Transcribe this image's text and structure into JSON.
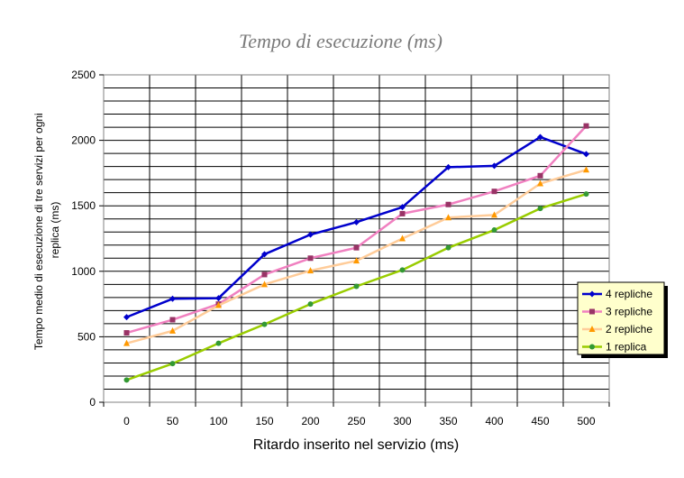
{
  "chart_data": {
    "type": "line",
    "title": "Tempo di esecuzione (ms)",
    "xlabel": "Ritardo inserito nel servizio (ms)",
    "ylabel_lines": [
      "Tempo medio di esecuzione di tre servizi per ogni",
      "replica (ms)"
    ],
    "x": [
      0,
      50,
      100,
      150,
      200,
      250,
      300,
      350,
      400,
      450,
      500
    ],
    "ylim": [
      0,
      2500
    ],
    "yticks": [
      0,
      500,
      1000,
      1500,
      2000,
      2500
    ],
    "grid": true,
    "legend_position": "right",
    "series": [
      {
        "name": "4 repliche",
        "color": "#0000cc",
        "marker": "diamond",
        "values": [
          650,
          790,
          795,
          1130,
          1280,
          1375,
          1490,
          1795,
          1805,
          2025,
          1895
        ]
      },
      {
        "name": "3 repliche",
        "color": "#f080c0",
        "marker_color": "#993366",
        "marker": "square",
        "values": [
          530,
          630,
          750,
          975,
          1100,
          1180,
          1440,
          1510,
          1610,
          1730,
          2110
        ]
      },
      {
        "name": "2 repliche",
        "color": "#ffcc99",
        "marker_color": "#ff9900",
        "marker": "triangle",
        "values": [
          450,
          545,
          740,
          900,
          1005,
          1080,
          1250,
          1410,
          1430,
          1670,
          1775
        ]
      },
      {
        "name": "1 replica",
        "color": "#99cc00",
        "marker_color": "#339933",
        "marker": "circle",
        "values": [
          170,
          295,
          450,
          595,
          750,
          885,
          1010,
          1180,
          1315,
          1480,
          1590
        ]
      }
    ]
  }
}
